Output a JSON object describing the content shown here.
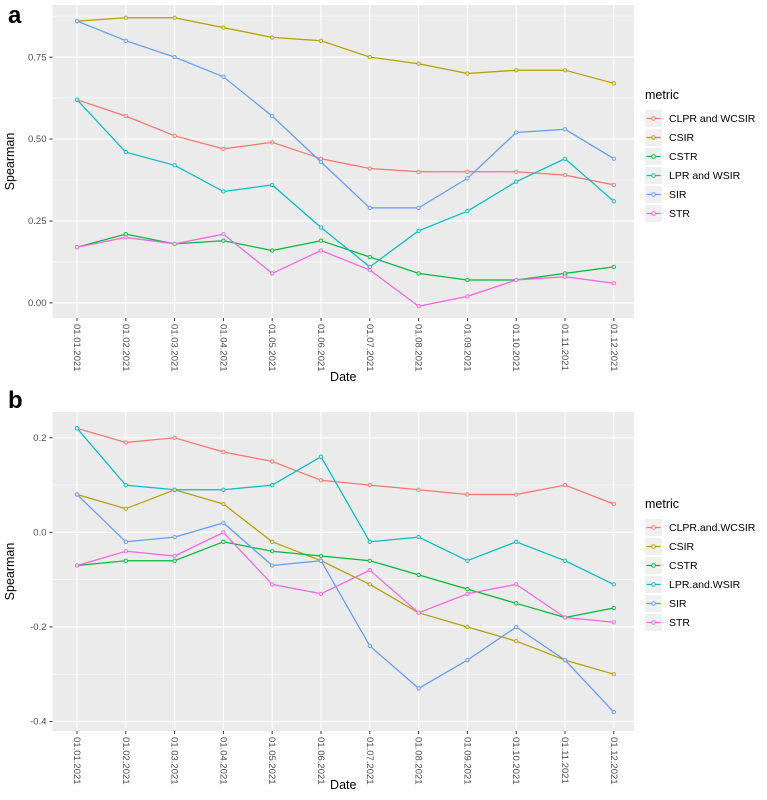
{
  "styles": {
    "panel_bg": "#EBEBEB",
    "grid_major": "#FFFFFF",
    "grid_minor": "#F7F7F7",
    "tick_mark_color": "#333333",
    "axis_text_color": "#4D4D4D",
    "legend_key_bg": "#F0F0F0"
  },
  "chart_data": [
    {
      "type": "line",
      "panel_label": "a",
      "xlabel": "Date",
      "ylabel": "Spearman",
      "legend_title": "metric",
      "legend_position": "right",
      "grid": true,
      "categories": [
        "01.01.2021",
        "01.02.2021",
        "01.03.2021",
        "01.04.2021",
        "01.05.2021",
        "01.06.2021",
        "01.07.2021",
        "01.08.2021",
        "01.09.2021",
        "01.10.2021",
        "01.11.2021",
        "01.12.2021"
      ],
      "ytick_labels": [
        "0.00",
        "0.25",
        "0.50",
        "0.75"
      ],
      "ytick_values": [
        0.0,
        0.25,
        0.5,
        0.75
      ],
      "yminor_values": [
        0.125,
        0.375,
        0.625,
        0.875
      ],
      "ylim": [
        -0.046,
        0.909
      ],
      "series": [
        {
          "name": "CLPR and WCSIR",
          "color": "#F8766D",
          "values": [
            0.62,
            0.57,
            0.51,
            0.47,
            0.49,
            0.44,
            0.41,
            0.4,
            0.4,
            0.4,
            0.39,
            0.36
          ]
        },
        {
          "name": "CSIR",
          "color": "#B79F00",
          "values": [
            0.86,
            0.87,
            0.87,
            0.84,
            0.81,
            0.8,
            0.75,
            0.73,
            0.7,
            0.71,
            0.71,
            0.67
          ]
        },
        {
          "name": "CSTR",
          "color": "#00BA38",
          "values": [
            0.17,
            0.21,
            0.18,
            0.19,
            0.16,
            0.19,
            0.14,
            0.09,
            0.07,
            0.07,
            0.09,
            0.11
          ]
        },
        {
          "name": "LPR and WSIR",
          "color": "#00BFC4",
          "values": [
            0.62,
            0.46,
            0.42,
            0.34,
            0.36,
            0.23,
            0.11,
            0.22,
            0.28,
            0.37,
            0.44,
            0.31
          ]
        },
        {
          "name": "SIR",
          "color": "#619CFF",
          "values": [
            0.86,
            0.8,
            0.75,
            0.69,
            0.57,
            0.43,
            0.29,
            0.29,
            0.38,
            0.52,
            0.53,
            0.44
          ]
        },
        {
          "name": "STR",
          "color": "#F564E3",
          "values": [
            0.17,
            0.2,
            0.18,
            0.21,
            0.09,
            0.16,
            0.1,
            -0.01,
            0.02,
            0.07,
            0.08,
            0.06
          ]
        }
      ]
    },
    {
      "type": "line",
      "panel_label": "b",
      "xlabel": "Date",
      "ylabel": "Spearman",
      "legend_title": "metric",
      "legend_position": "right",
      "grid": true,
      "categories": [
        "01.01.2021",
        "01.02.2021",
        "01.03.2021",
        "01.04.2021",
        "01.05.2021",
        "01.06.2021",
        "01.07.2021",
        "01.08.2021",
        "01.09.2021",
        "01.10.2021",
        "01.11.2021",
        "01.12.2021"
      ],
      "ytick_labels": [
        "0.2",
        "0.0",
        "-0.2",
        "-0.4"
      ],
      "ytick_values": [
        0.2,
        0.0,
        -0.2,
        -0.4
      ],
      "yminor_values": [
        0.1,
        -0.1,
        -0.3
      ],
      "ylim": [
        -0.42,
        0.2545
      ],
      "series": [
        {
          "name": "CLPR.and.WCSIR",
          "color": "#F8766D",
          "values": [
            0.22,
            0.19,
            0.2,
            0.17,
            0.15,
            0.11,
            0.1,
            0.09,
            0.08,
            0.08,
            0.1,
            0.06
          ]
        },
        {
          "name": "CSIR",
          "color": "#B79F00",
          "values": [
            0.08,
            0.05,
            0.09,
            0.06,
            -0.02,
            -0.06,
            -0.11,
            -0.17,
            -0.2,
            -0.23,
            -0.27,
            -0.3
          ]
        },
        {
          "name": "CSTR",
          "color": "#00BA38",
          "values": [
            -0.07,
            -0.06,
            -0.06,
            -0.02,
            -0.04,
            -0.05,
            -0.06,
            -0.09,
            -0.12,
            -0.15,
            -0.18,
            -0.16
          ]
        },
        {
          "name": "LPR.and.WSIR",
          "color": "#00BFC4",
          "values": [
            0.22,
            0.1,
            0.09,
            0.09,
            0.1,
            0.16,
            -0.02,
            -0.01,
            -0.06,
            -0.02,
            -0.06,
            -0.11
          ]
        },
        {
          "name": "SIR",
          "color": "#619CFF",
          "values": [
            0.08,
            -0.02,
            -0.01,
            0.02,
            -0.07,
            -0.06,
            -0.24,
            -0.33,
            -0.27,
            -0.2,
            -0.27,
            -0.38
          ]
        },
        {
          "name": "STR",
          "color": "#F564E3",
          "values": [
            -0.07,
            -0.04,
            -0.05,
            0.0,
            -0.11,
            -0.13,
            -0.08,
            -0.17,
            -0.13,
            -0.11,
            -0.18,
            -0.19
          ]
        }
      ]
    }
  ]
}
